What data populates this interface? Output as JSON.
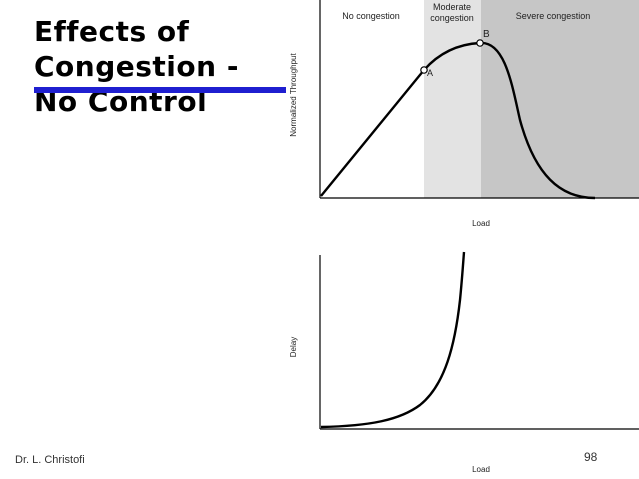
{
  "slide": {
    "title_lines": [
      "Effects of",
      "Congestion -",
      "No Control"
    ],
    "author": "Dr. L. Christofi",
    "page_number": "98"
  },
  "throughput_chart": {
    "ylabel": "Normalized Throughput",
    "xlabel": "Load",
    "regions": [
      "No congestion",
      "Moderate congestion",
      "Severe congestion"
    ],
    "region_lines": {
      "no": [
        "No congestion"
      ],
      "moderate": [
        "Moderate",
        "congestion"
      ],
      "severe": [
        "Severe  congestion"
      ]
    },
    "point_a": "A",
    "point_b": "B",
    "colors": {
      "moderate": "#e3e3e3",
      "severe": "#c6c6c6",
      "curve": "#000000"
    }
  },
  "delay_chart": {
    "ylabel": "Delay",
    "xlabel": "Load",
    "colors": {
      "curve": "#000000"
    }
  }
}
